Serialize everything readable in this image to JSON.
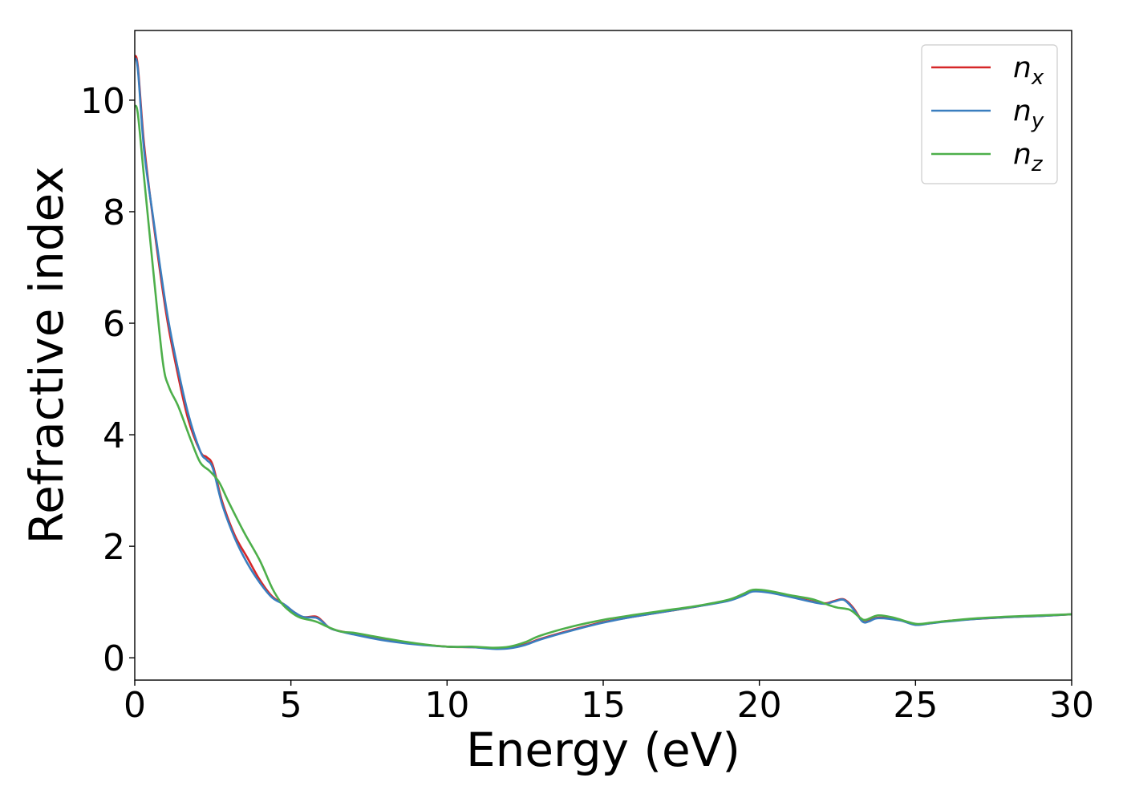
{
  "chart_data": {
    "type": "line",
    "title": "",
    "xlabel": "Energy (eV)",
    "ylabel": "Refractive index",
    "xlim": [
      0,
      30
    ],
    "ylim": [
      -0.4,
      11.25
    ],
    "xticks": [
      {
        "value": 0,
        "label": "0"
      },
      {
        "value": 5,
        "label": "5"
      },
      {
        "value": 10,
        "label": "10"
      },
      {
        "value": 15,
        "label": "15"
      },
      {
        "value": 20,
        "label": "20"
      },
      {
        "value": 25,
        "label": "25"
      },
      {
        "value": 30,
        "label": "30"
      }
    ],
    "yticks": [
      {
        "value": 0,
        "label": "0"
      },
      {
        "value": 2,
        "label": "2"
      },
      {
        "value": 4,
        "label": "4"
      },
      {
        "value": 6,
        "label": "6"
      },
      {
        "value": 8,
        "label": "8"
      },
      {
        "value": 10,
        "label": "10"
      }
    ],
    "grid": false,
    "legend_position": "top-right",
    "series": [
      {
        "name": "n_x",
        "legend_base": "n",
        "legend_sub": "x",
        "color": "#d62728",
        "points": [
          [
            0,
            10.8
          ],
          [
            0.1,
            10.6
          ],
          [
            0.3,
            9.2
          ],
          [
            0.6,
            7.8
          ],
          [
            1.0,
            6.2
          ],
          [
            1.3,
            5.3
          ],
          [
            1.7,
            4.3
          ],
          [
            2.1,
            3.7
          ],
          [
            2.3,
            3.6
          ],
          [
            2.5,
            3.45
          ],
          [
            2.8,
            2.8
          ],
          [
            3.2,
            2.2
          ],
          [
            3.6,
            1.8
          ],
          [
            4.0,
            1.4
          ],
          [
            4.4,
            1.1
          ],
          [
            4.8,
            0.95
          ],
          [
            5.1,
            0.82
          ],
          [
            5.4,
            0.73
          ],
          [
            5.8,
            0.74
          ],
          [
            6.0,
            0.66
          ],
          [
            6.3,
            0.52
          ],
          [
            7.0,
            0.43
          ],
          [
            8.0,
            0.32
          ],
          [
            9.0,
            0.25
          ],
          [
            10.0,
            0.2
          ],
          [
            10.8,
            0.19
          ],
          [
            11.5,
            0.17
          ],
          [
            12.0,
            0.18
          ],
          [
            12.5,
            0.24
          ],
          [
            13.0,
            0.34
          ],
          [
            14.0,
            0.5
          ],
          [
            15.0,
            0.64
          ],
          [
            16.0,
            0.74
          ],
          [
            17.0,
            0.83
          ],
          [
            18.0,
            0.92
          ],
          [
            19.0,
            1.03
          ],
          [
            19.5,
            1.13
          ],
          [
            19.8,
            1.2
          ],
          [
            20.3,
            1.18
          ],
          [
            21.0,
            1.1
          ],
          [
            22.0,
            0.98
          ],
          [
            22.4,
            1.02
          ],
          [
            22.7,
            1.05
          ],
          [
            23.0,
            0.9
          ],
          [
            23.3,
            0.66
          ],
          [
            23.5,
            0.66
          ],
          [
            23.8,
            0.72
          ],
          [
            24.5,
            0.68
          ],
          [
            25.0,
            0.6
          ],
          [
            25.5,
            0.62
          ],
          [
            26.0,
            0.66
          ],
          [
            27.0,
            0.7
          ],
          [
            28.0,
            0.73
          ],
          [
            29.0,
            0.75
          ],
          [
            30.0,
            0.78
          ]
        ]
      },
      {
        "name": "n_y",
        "legend_base": "n",
        "legend_sub": "y",
        "color": "#3a7ebf",
        "points": [
          [
            0,
            10.75
          ],
          [
            0.1,
            10.55
          ],
          [
            0.3,
            9.1
          ],
          [
            0.6,
            7.85
          ],
          [
            1.0,
            6.3
          ],
          [
            1.3,
            5.4
          ],
          [
            1.7,
            4.4
          ],
          [
            2.1,
            3.7
          ],
          [
            2.3,
            3.55
          ],
          [
            2.5,
            3.4
          ],
          [
            2.8,
            2.75
          ],
          [
            3.2,
            2.15
          ],
          [
            3.6,
            1.7
          ],
          [
            4.0,
            1.35
          ],
          [
            4.4,
            1.08
          ],
          [
            4.8,
            0.95
          ],
          [
            5.1,
            0.82
          ],
          [
            5.4,
            0.73
          ],
          [
            5.8,
            0.72
          ],
          [
            6.0,
            0.65
          ],
          [
            6.3,
            0.52
          ],
          [
            7.0,
            0.42
          ],
          [
            8.0,
            0.31
          ],
          [
            9.0,
            0.24
          ],
          [
            10.0,
            0.2
          ],
          [
            10.8,
            0.19
          ],
          [
            11.5,
            0.16
          ],
          [
            12.0,
            0.17
          ],
          [
            12.5,
            0.23
          ],
          [
            13.0,
            0.33
          ],
          [
            14.0,
            0.49
          ],
          [
            15.0,
            0.63
          ],
          [
            16.0,
            0.74
          ],
          [
            17.0,
            0.83
          ],
          [
            18.0,
            0.92
          ],
          [
            19.0,
            1.02
          ],
          [
            19.5,
            1.12
          ],
          [
            19.8,
            1.19
          ],
          [
            20.3,
            1.17
          ],
          [
            21.0,
            1.09
          ],
          [
            22.0,
            0.97
          ],
          [
            22.4,
            1.01
          ],
          [
            22.7,
            1.04
          ],
          [
            23.0,
            0.88
          ],
          [
            23.3,
            0.65
          ],
          [
            23.5,
            0.65
          ],
          [
            23.8,
            0.71
          ],
          [
            24.5,
            0.67
          ],
          [
            25.0,
            0.59
          ],
          [
            25.5,
            0.62
          ],
          [
            26.0,
            0.65
          ],
          [
            27.0,
            0.7
          ],
          [
            28.0,
            0.73
          ],
          [
            29.0,
            0.75
          ],
          [
            30.0,
            0.78
          ]
        ]
      },
      {
        "name": "n_z",
        "legend_base": "n",
        "legend_sub": "z",
        "color": "#4daf4a",
        "points": [
          [
            0,
            9.9
          ],
          [
            0.1,
            9.75
          ],
          [
            0.3,
            8.6
          ],
          [
            0.6,
            6.9
          ],
          [
            0.9,
            5.3
          ],
          [
            1.1,
            4.85
          ],
          [
            1.4,
            4.5
          ],
          [
            1.8,
            3.9
          ],
          [
            2.1,
            3.5
          ],
          [
            2.4,
            3.35
          ],
          [
            2.7,
            3.15
          ],
          [
            3.0,
            2.8
          ],
          [
            3.5,
            2.25
          ],
          [
            4.0,
            1.75
          ],
          [
            4.4,
            1.25
          ],
          [
            4.7,
            0.98
          ],
          [
            5.0,
            0.82
          ],
          [
            5.3,
            0.72
          ],
          [
            5.8,
            0.65
          ],
          [
            6.2,
            0.55
          ],
          [
            6.6,
            0.47
          ],
          [
            7.0,
            0.45
          ],
          [
            7.5,
            0.4
          ],
          [
            8.0,
            0.35
          ],
          [
            9.0,
            0.26
          ],
          [
            10.0,
            0.2
          ],
          [
            10.8,
            0.2
          ],
          [
            11.5,
            0.18
          ],
          [
            12.0,
            0.2
          ],
          [
            12.5,
            0.28
          ],
          [
            13.0,
            0.4
          ],
          [
            14.0,
            0.56
          ],
          [
            15.0,
            0.68
          ],
          [
            16.0,
            0.77
          ],
          [
            17.0,
            0.85
          ],
          [
            18.0,
            0.93
          ],
          [
            19.0,
            1.04
          ],
          [
            19.5,
            1.15
          ],
          [
            19.8,
            1.22
          ],
          [
            20.3,
            1.2
          ],
          [
            21.0,
            1.12
          ],
          [
            21.7,
            1.05
          ],
          [
            22.2,
            0.95
          ],
          [
            22.5,
            0.9
          ],
          [
            22.9,
            0.86
          ],
          [
            23.2,
            0.73
          ],
          [
            23.4,
            0.68
          ],
          [
            23.8,
            0.76
          ],
          [
            24.3,
            0.72
          ],
          [
            25.0,
            0.61
          ],
          [
            25.5,
            0.63
          ],
          [
            26.0,
            0.66
          ],
          [
            27.0,
            0.71
          ],
          [
            28.0,
            0.74
          ],
          [
            29.0,
            0.76
          ],
          [
            30.0,
            0.78
          ]
        ]
      }
    ]
  }
}
